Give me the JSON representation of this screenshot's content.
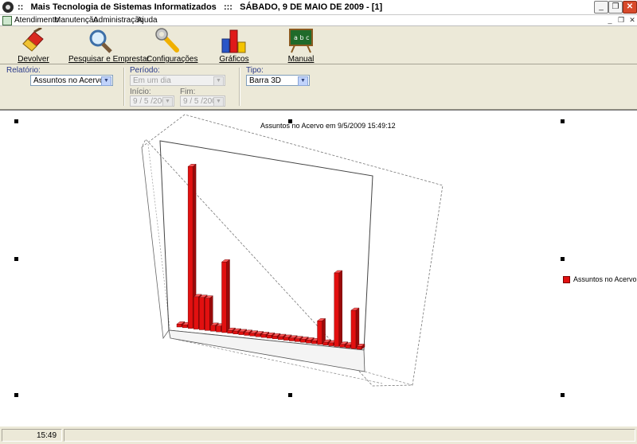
{
  "window": {
    "title": "::   Mais Tecnologia de Sistemas Informatizados   :::   SÁBADO, 9 DE MAIO DE 2009 - [1]",
    "minimize_glyph": "_",
    "restore_glyph": "❐",
    "close_glyph": "✕"
  },
  "menu": {
    "items": [
      "Atendimento",
      "Manutenção",
      "Administração",
      "Ajuda"
    ],
    "mdi_minimize": "_",
    "mdi_restore": "❐",
    "mdi_close": "✕"
  },
  "toolbar": {
    "buttons": [
      {
        "label": "Devolver",
        "icon": "eraser-icon"
      },
      {
        "label": "Pesquisar e Emprestar",
        "icon": "magnifier-icon"
      },
      {
        "label": "Configurações",
        "icon": "wrench-icon"
      },
      {
        "label": "Gráficos",
        "icon": "bar-chart-icon"
      },
      {
        "label": "Manual",
        "icon": "chalkboard-icon"
      }
    ]
  },
  "filters": {
    "relatorio_label": "Relatório:",
    "relatorio_value": "Assuntos no Acervo",
    "periodo_label": "Período:",
    "periodo_value": "Em um dia",
    "inicio_label": "Início:",
    "inicio_value": "9 / 5 /2009",
    "fim_label": "Fim:",
    "fim_value": "9 / 5 /2009",
    "tipo_label": "Tipo:",
    "tipo_value": "Barra 3D"
  },
  "chart_data": {
    "type": "bar",
    "title": "Assuntos no Acervo em  9/5/2009 15:49:12",
    "legend": "Assuntos no Acervo",
    "legend_position": "right",
    "bar_color": "#e21010",
    "values": [
      1,
      1,
      55,
      11,
      11,
      11,
      2,
      2,
      24,
      1,
      1,
      1,
      1,
      1,
      1,
      1,
      1,
      1,
      1,
      1,
      1,
      1,
      1,
      1,
      1,
      8,
      1,
      1,
      25,
      1,
      1,
      13,
      1
    ],
    "ylim": [
      0,
      60
    ],
    "view": "3d"
  },
  "status": {
    "time": "15:49"
  }
}
